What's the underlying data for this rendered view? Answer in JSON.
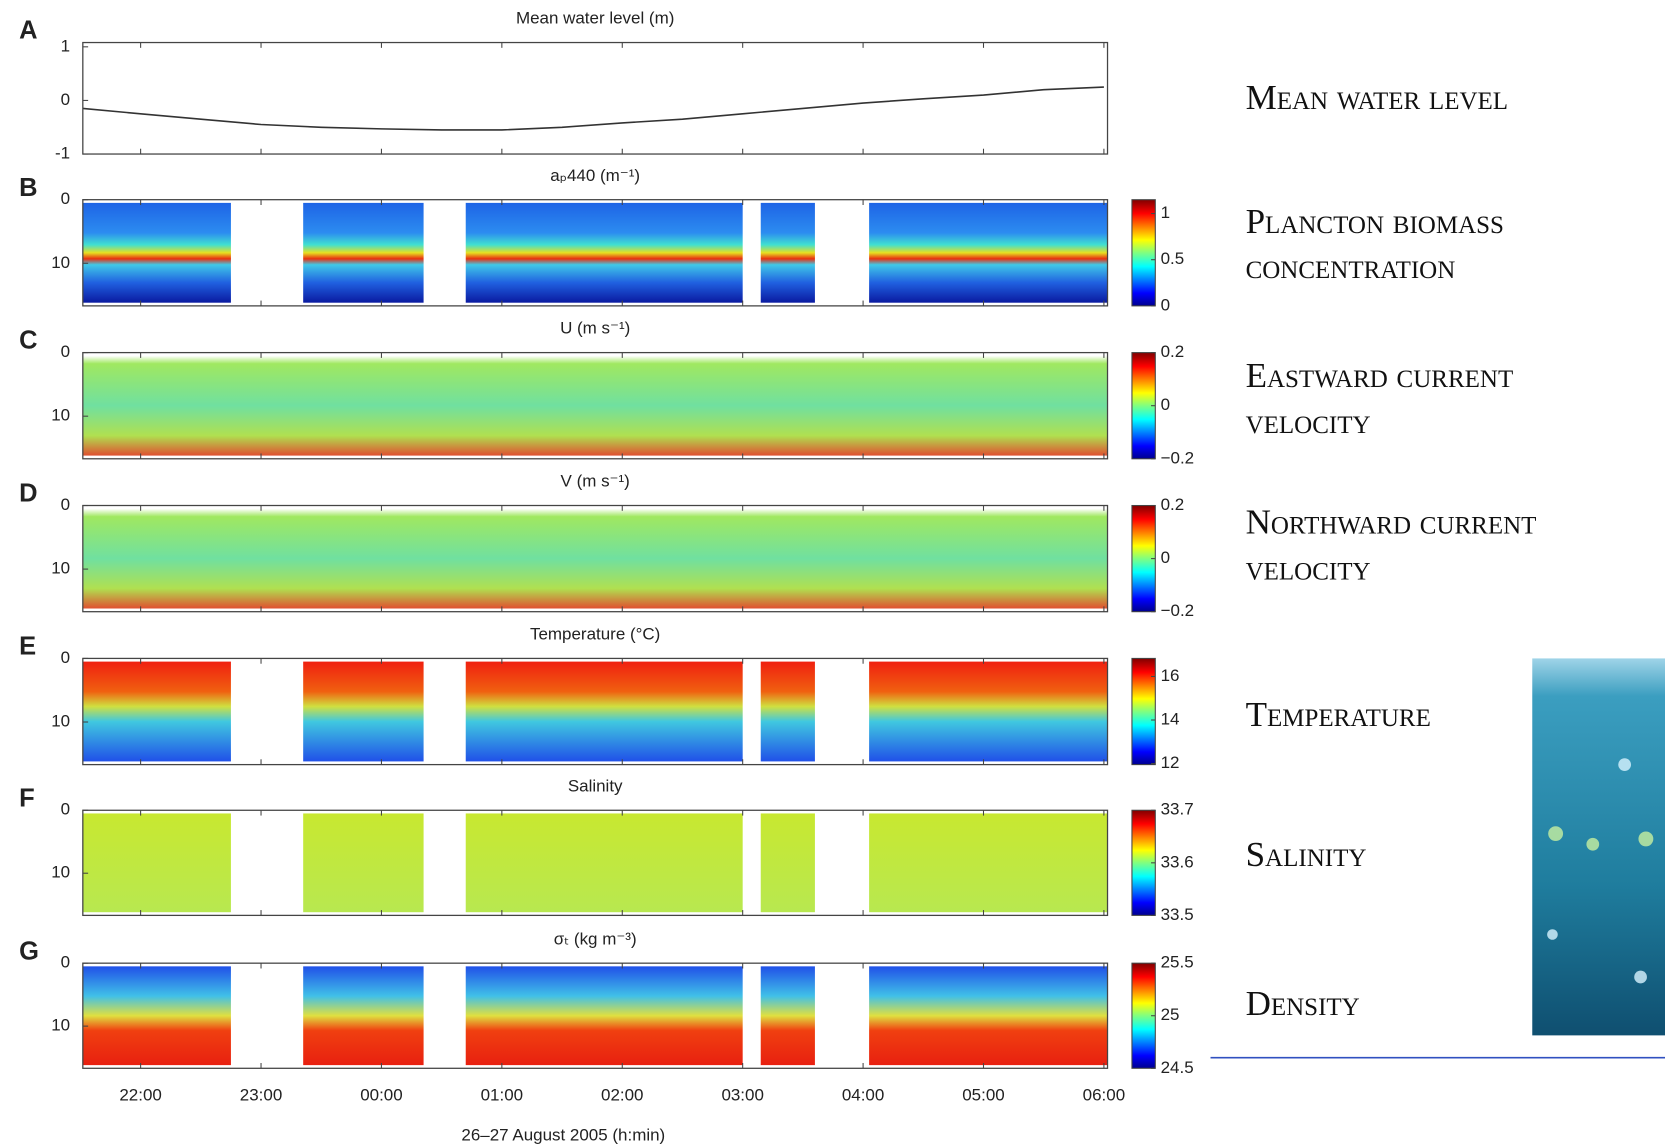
{
  "chart_data": [
    {
      "type": "line",
      "label": "A",
      "title": "Mean water level (m)",
      "x": [
        21.52,
        22,
        22.5,
        23,
        23.5,
        24,
        24.5,
        25,
        25.5,
        26,
        26.5,
        27,
        27.5,
        28,
        28.5,
        29,
        29.5,
        30
      ],
      "values": [
        -0.15,
        -0.25,
        -0.35,
        -0.45,
        -0.5,
        -0.53,
        -0.55,
        -0.55,
        -0.5,
        -0.42,
        -0.35,
        -0.25,
        -0.15,
        -0.05,
        0.03,
        0.1,
        0.2,
        0.25
      ],
      "color": "#333333",
      "ylim": [
        -1,
        1.08
      ],
      "yticks": [
        -1,
        0,
        1
      ]
    },
    {
      "type": "heatmap",
      "label": "B",
      "title": "aₚ440 (m⁻¹)",
      "ylim": [
        16.7,
        0
      ],
      "yticks": [
        0,
        10
      ],
      "x_segments": [
        [
          21.52,
          22.75
        ],
        [
          23.35,
          24.35
        ],
        [
          24.7,
          27.0
        ],
        [
          27.15,
          27.6
        ],
        [
          28.05,
          30.03
        ]
      ],
      "clim": [
        0,
        1.15
      ],
      "cticks": [
        0,
        0.5,
        1
      ]
    },
    {
      "type": "heatmap",
      "label": "C",
      "title": "U (m s⁻¹)",
      "ylim": [
        16.7,
        0
      ],
      "yticks": [
        0,
        10
      ],
      "x_segments": [
        [
          21.52,
          30.03
        ]
      ],
      "clim": [
        -0.2,
        0.2
      ],
      "cticks": [
        {
          "value": -0.2,
          "label": "−0.2"
        },
        0,
        0.2
      ]
    },
    {
      "type": "heatmap",
      "label": "D",
      "title": "V (m s⁻¹)",
      "ylim": [
        16.7,
        0
      ],
      "yticks": [
        0,
        10
      ],
      "x_segments": [
        [
          21.52,
          30.03
        ]
      ],
      "clim": [
        -0.2,
        0.2
      ],
      "cticks": [
        {
          "value": -0.2,
          "label": "−0.2"
        },
        0,
        0.2
      ]
    },
    {
      "type": "heatmap",
      "label": "E",
      "title": "Temperature (°C)",
      "ylim": [
        16.7,
        0
      ],
      "yticks": [
        0,
        10
      ],
      "x_segments": [
        [
          21.52,
          22.75
        ],
        [
          23.35,
          24.35
        ],
        [
          24.7,
          27.0
        ],
        [
          27.15,
          27.6
        ],
        [
          28.05,
          30.03
        ]
      ],
      "clim": [
        11.95,
        16.83
      ],
      "cticks": [
        12,
        14,
        16
      ]
    },
    {
      "type": "heatmap",
      "label": "F",
      "title": "Salinity",
      "ylim": [
        16.7,
        0
      ],
      "yticks": [
        0,
        10
      ],
      "x_segments": [
        [
          21.52,
          22.75
        ],
        [
          23.35,
          24.35
        ],
        [
          24.7,
          27.0
        ],
        [
          27.15,
          27.6
        ],
        [
          28.05,
          30.03
        ]
      ],
      "clim": [
        33.5,
        33.7
      ],
      "cticks": [
        33.5,
        33.6,
        33.7
      ]
    },
    {
      "type": "heatmap",
      "label": "G",
      "title": "σₜ (kg m⁻³)",
      "ylim": [
        16.7,
        0
      ],
      "yticks": [
        0,
        10
      ],
      "x_segments": [
        [
          21.52,
          22.75
        ],
        [
          23.35,
          24.35
        ],
        [
          24.7,
          27.0
        ],
        [
          27.15,
          27.6
        ],
        [
          28.05,
          30.03
        ]
      ],
      "clim": [
        24.5,
        25.5
      ],
      "cticks": [
        24.5,
        25,
        25.5
      ],
      "xlim": [
        21.52,
        30.03
      ],
      "xticks": [
        {
          "value": 22,
          "label": "22:00"
        },
        {
          "value": 23,
          "label": "23:00"
        },
        {
          "value": 24,
          "label": "00:00"
        },
        {
          "value": 25,
          "label": "01:00"
        },
        {
          "value": 26,
          "label": "02:00"
        },
        {
          "value": 27,
          "label": "03:00"
        },
        {
          "value": 28,
          "label": "04:00"
        },
        {
          "value": 29,
          "label": "05:00"
        },
        {
          "value": 30,
          "label": "06:00"
        }
      ],
      "xlabel": "26–27 August 2005 (h:min)"
    }
  ],
  "slide": {
    "labels": [
      [
        "Mean water level"
      ],
      [
        "Plancton biomass",
        "concentration"
      ],
      [
        "Eastward current",
        "velocity"
      ],
      [
        "Northward current",
        "velocity"
      ],
      [
        "Temperature"
      ],
      [
        "Salinity"
      ],
      [
        "Density"
      ]
    ]
  }
}
